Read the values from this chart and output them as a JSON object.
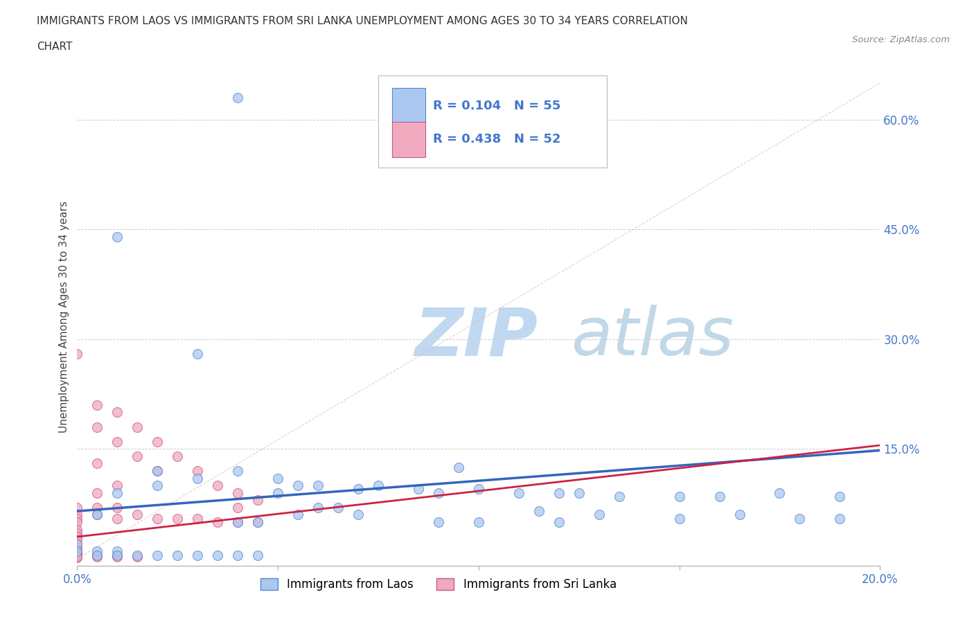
{
  "title_line1": "IMMIGRANTS FROM LAOS VS IMMIGRANTS FROM SRI LANKA UNEMPLOYMENT AMONG AGES 30 TO 34 YEARS CORRELATION",
  "title_line2": "CHART",
  "source": "Source: ZipAtlas.com",
  "ylabel": "Unemployment Among Ages 30 to 34 years",
  "xlim": [
    0.0,
    0.2
  ],
  "ylim": [
    -0.01,
    0.67
  ],
  "xticks": [
    0.0,
    0.05,
    0.1,
    0.15,
    0.2
  ],
  "xtick_labels": [
    "0.0%",
    "",
    "",
    "",
    "20.0%"
  ],
  "yticks_right": [
    0.15,
    0.3,
    0.45,
    0.6
  ],
  "ytick_labels_right": [
    "15.0%",
    "30.0%",
    "45.0%",
    "60.0%"
  ],
  "laos_color": "#aac8f0",
  "srilanka_color": "#f0aac0",
  "laos_edge": "#5588cc",
  "srilanka_edge": "#cc5588",
  "laos_trend_color": "#3366bb",
  "srilanka_trend_color": "#cc2244",
  "diag_color": "#cccccc",
  "r_laos": 0.104,
  "n_laos": 55,
  "r_srilanka": 0.438,
  "n_srilanka": 52,
  "watermark_zip": "ZIP",
  "watermark_atlas": "atlas",
  "watermark_color_zip": "#c0d8f0",
  "watermark_color_atlas": "#c0d8e8",
  "tick_color": "#4477cc",
  "laos_trend_y0": 0.065,
  "laos_trend_y1": 0.148,
  "srilanka_trend_y0": 0.03,
  "srilanka_trend_y1": 0.155,
  "laos_x": [
    0.04,
    0.01,
    0.03,
    0.05,
    0.06,
    0.04,
    0.055,
    0.045,
    0.065,
    0.07,
    0.09,
    0.1,
    0.115,
    0.13,
    0.15,
    0.165,
    0.18,
    0.19,
    0.005,
    0.01,
    0.02,
    0.02,
    0.03,
    0.04,
    0.05,
    0.055,
    0.06,
    0.07,
    0.075,
    0.085,
    0.09,
    0.1,
    0.11,
    0.12,
    0.125,
    0.135,
    0.15,
    0.16,
    0.175,
    0.19,
    0.0,
    0.0,
    0.005,
    0.005,
    0.01,
    0.01,
    0.015,
    0.02,
    0.025,
    0.03,
    0.035,
    0.04,
    0.045,
    0.095,
    0.12
  ],
  "laos_y": [
    0.63,
    0.44,
    0.28,
    0.09,
    0.07,
    0.05,
    0.06,
    0.05,
    0.07,
    0.06,
    0.05,
    0.05,
    0.065,
    0.06,
    0.055,
    0.06,
    0.055,
    0.055,
    0.06,
    0.09,
    0.12,
    0.1,
    0.11,
    0.12,
    0.11,
    0.1,
    0.1,
    0.095,
    0.1,
    0.095,
    0.09,
    0.095,
    0.09,
    0.09,
    0.09,
    0.085,
    0.085,
    0.085,
    0.09,
    0.085,
    0.02,
    0.01,
    0.01,
    0.005,
    0.01,
    0.005,
    0.005,
    0.005,
    0.005,
    0.005,
    0.005,
    0.005,
    0.005,
    0.125,
    0.05
  ],
  "srilanka_x": [
    0.0,
    0.0,
    0.0,
    0.0,
    0.0,
    0.0,
    0.0,
    0.0,
    0.0,
    0.0,
    0.005,
    0.005,
    0.005,
    0.01,
    0.01,
    0.01,
    0.015,
    0.015,
    0.02,
    0.02,
    0.025,
    0.03,
    0.035,
    0.04,
    0.04,
    0.045,
    0.005,
    0.005,
    0.005,
    0.01,
    0.01,
    0.015,
    0.02,
    0.025,
    0.03,
    0.035,
    0.04,
    0.045,
    0.0,
    0.0,
    0.0,
    0.0,
    0.005,
    0.005,
    0.01,
    0.01,
    0.015,
    0.0,
    0.0,
    0.0,
    0.0,
    0.0
  ],
  "srilanka_y": [
    0.28,
    0.07,
    0.06,
    0.055,
    0.05,
    0.04,
    0.035,
    0.03,
    0.025,
    0.02,
    0.21,
    0.18,
    0.13,
    0.2,
    0.16,
    0.1,
    0.18,
    0.14,
    0.16,
    0.12,
    0.14,
    0.12,
    0.1,
    0.09,
    0.07,
    0.08,
    0.09,
    0.07,
    0.06,
    0.07,
    0.055,
    0.06,
    0.055,
    0.055,
    0.055,
    0.05,
    0.05,
    0.05,
    0.015,
    0.01,
    0.005,
    0.002,
    0.005,
    0.003,
    0.005,
    0.003,
    0.003,
    0.008,
    0.007,
    0.006,
    0.004,
    0.003
  ]
}
